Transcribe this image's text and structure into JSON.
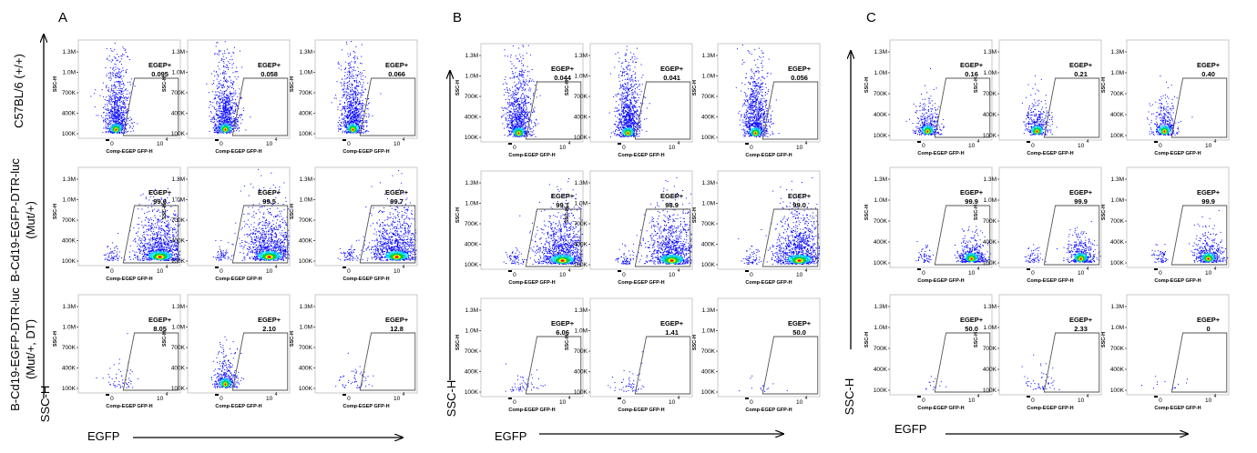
{
  "figure": {
    "panel_letters": [
      "A",
      "B",
      "C"
    ],
    "row_labels": [
      [
        "C57BL/6 (+/+)"
      ],
      [
        "B-Cd19-EGFP-DTR-luc",
        "(Mut/+)"
      ],
      [
        "B-Cd19-EGFP-DTR-luc",
        "(Mut/+, DT)"
      ]
    ],
    "y_axis_label": "SSC-H",
    "x_axis_label": "EGFP"
  },
  "chart_data": {
    "type": "scatter",
    "plot_xlabel": "Comp-EGEP GFP-H",
    "plot_ylabel": "SSC-H",
    "gate_label": "EGEP+",
    "y_ticks": [
      "100K",
      "400K",
      "700K",
      "1.0M",
      "1.3M"
    ],
    "x_ticks": [
      "0",
      "10",
      "4"
    ],
    "colors": {
      "low": "#0000ff",
      "mid": "#00d000",
      "high": "#ff0000",
      "gate": "#555555",
      "axis": "#000000"
    },
    "panels": [
      {
        "letter": "A",
        "rows": [
          {
            "condition": "C57BL/6 (+/+)",
            "plots": [
              {
                "gate_value": "0.095",
                "density": "low-egfp-dense"
              },
              {
                "gate_value": "0.058",
                "density": "low-egfp-dense"
              },
              {
                "gate_value": "0.066",
                "density": "low-egfp-dense"
              }
            ]
          },
          {
            "condition": "B-Cd19-EGFP-DTR-luc (Mut/+)",
            "plots": [
              {
                "gate_value": "99.6",
                "density": "high-egfp-dense"
              },
              {
                "gate_value": "99.5",
                "density": "high-egfp-dense"
              },
              {
                "gate_value": "99.7",
                "density": "high-egfp-dense"
              }
            ]
          },
          {
            "condition": "B-Cd19-EGFP-DTR-luc (Mut/+, DT)",
            "plots": [
              {
                "gate_value": "8.05",
                "density": "sparse"
              },
              {
                "gate_value": "2.10",
                "density": "low-egfp-cluster"
              },
              {
                "gate_value": "12.8",
                "density": "sparse"
              }
            ]
          }
        ]
      },
      {
        "letter": "B",
        "rows": [
          {
            "condition": "C57BL/6 (+/+)",
            "plots": [
              {
                "gate_value": "0.044",
                "density": "low-egfp-dense"
              },
              {
                "gate_value": "0.041",
                "density": "low-egfp-dense"
              },
              {
                "gate_value": "0.056",
                "density": "low-egfp-dense"
              }
            ]
          },
          {
            "condition": "B-Cd19-EGFP-DTR-luc (Mut/+)",
            "plots": [
              {
                "gate_value": "99.1",
                "density": "high-egfp-dense"
              },
              {
                "gate_value": "98.9",
                "density": "high-egfp-dense"
              },
              {
                "gate_value": "99.0",
                "density": "high-egfp-dense"
              }
            ]
          },
          {
            "condition": "B-Cd19-EGFP-DTR-luc (Mut/+, DT)",
            "plots": [
              {
                "gate_value": "6.06",
                "density": "sparse"
              },
              {
                "gate_value": "1.41",
                "density": "sparse"
              },
              {
                "gate_value": "50.0",
                "density": "very-sparse"
              }
            ]
          }
        ]
      },
      {
        "letter": "C",
        "rows": [
          {
            "condition": "C57BL/6 (+/+)",
            "plots": [
              {
                "gate_value": "0.16",
                "density": "low-egfp-medium"
              },
              {
                "gate_value": "0.21",
                "density": "low-egfp-medium"
              },
              {
                "gate_value": "0.40",
                "density": "low-egfp-medium"
              }
            ]
          },
          {
            "condition": "B-Cd19-EGFP-DTR-luc (Mut/+)",
            "plots": [
              {
                "gate_value": "99.9",
                "density": "high-egfp-medium"
              },
              {
                "gate_value": "99.9",
                "density": "high-egfp-medium"
              },
              {
                "gate_value": "99.9",
                "density": "high-egfp-medium"
              }
            ]
          },
          {
            "condition": "B-Cd19-EGFP-DTR-luc (Mut/+, DT)",
            "plots": [
              {
                "gate_value": "50.0",
                "density": "very-sparse"
              },
              {
                "gate_value": "2.33",
                "density": "sparse"
              },
              {
                "gate_value": "0",
                "density": "very-sparse"
              }
            ]
          }
        ]
      }
    ]
  }
}
